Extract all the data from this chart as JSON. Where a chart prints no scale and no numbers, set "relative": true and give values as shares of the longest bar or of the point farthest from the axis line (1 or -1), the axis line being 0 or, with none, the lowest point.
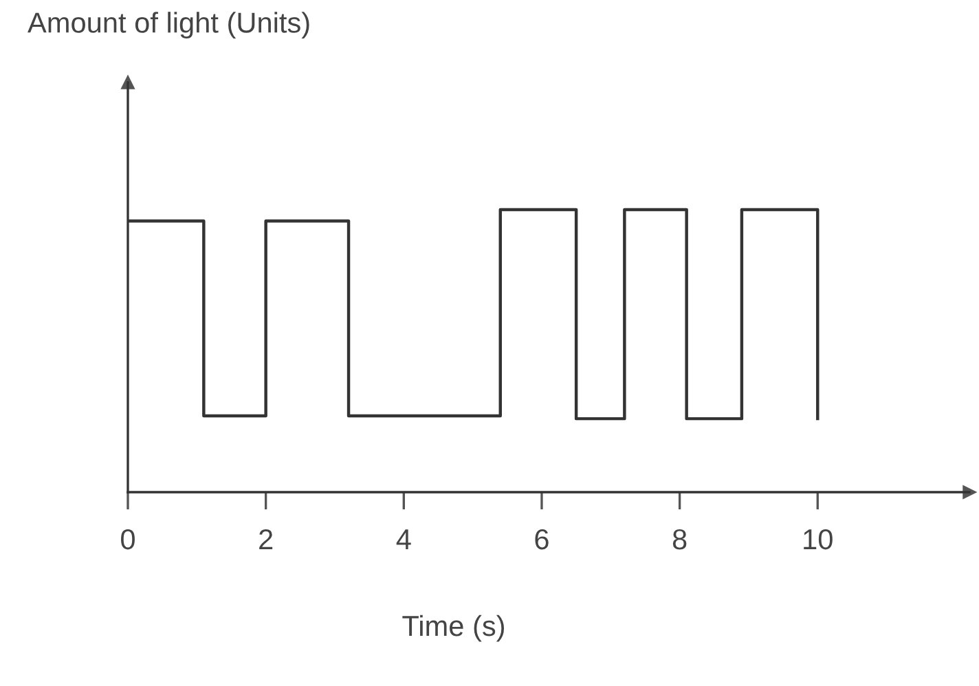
{
  "chart_data": {
    "type": "step",
    "xlabel": "Time (s)",
    "annotations": [
      "Amount of light (Units)"
    ],
    "relative": true,
    "x": [
      0,
      1.1,
      2,
      3.2,
      5.4,
      6.5,
      7.2,
      8.1,
      8.9,
      10
    ],
    "series": [
      {
        "color": "#333333",
        "values": [
          0.96,
          0.27,
          0.96,
          0.27,
          1,
          0.26,
          1,
          0.26,
          1,
          0.26
        ]
      }
    ],
    "xlim": [
      0,
      12.2
    ],
    "xticks": [
      0,
      2,
      4,
      6,
      8,
      10
    ],
    "grid": false,
    "legend": false,
    "marker": "none",
    "line_style": "solid"
  }
}
